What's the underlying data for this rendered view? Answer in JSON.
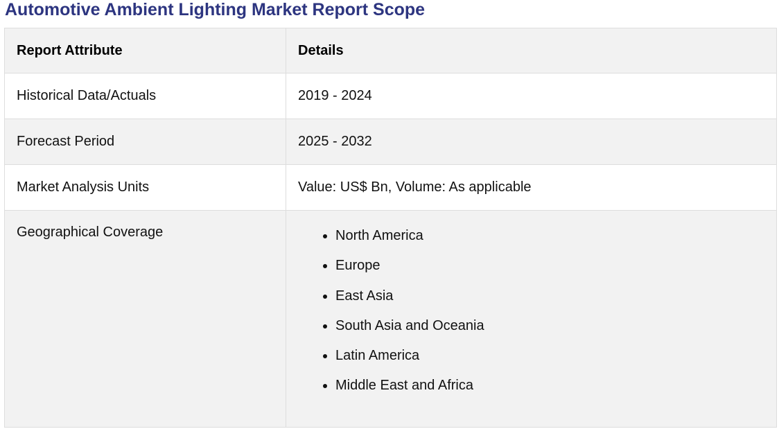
{
  "title": "Automotive Ambient Lighting Market Report Scope",
  "table": {
    "headers": [
      "Report Attribute",
      "Details"
    ],
    "rows": [
      {
        "attribute": "Historical Data/Actuals",
        "details": "2019 - 2024"
      },
      {
        "attribute": "Forecast Period",
        "details": "2025 - 2032"
      },
      {
        "attribute": "Market Analysis Units",
        "details": "Value: US$ Bn, Volume: As applicable"
      }
    ],
    "geo": {
      "attribute": "Geographical Coverage",
      "regions": [
        "North America",
        "Europe",
        "East Asia",
        "South Asia and Oceania",
        "Latin America",
        "Middle East and Africa"
      ]
    }
  }
}
